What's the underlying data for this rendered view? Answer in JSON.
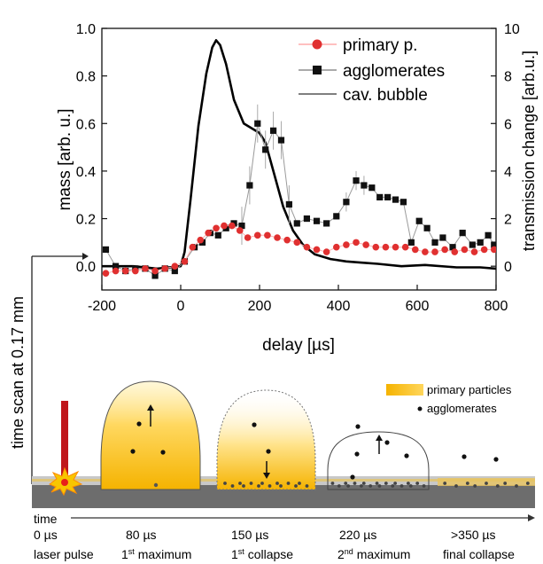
{
  "chart_data": {
    "type": "line",
    "xlabel": "delay [µs]",
    "ylabel_left": "mass [arb. u.]",
    "ylabel_right": "transmission change [arb.u.]",
    "xlim": [
      -200,
      800
    ],
    "ylim_left": [
      -0.1,
      1.0
    ],
    "ylim_right": [
      -1,
      10
    ],
    "x_ticks": [
      "-200",
      "0",
      "200",
      "400",
      "600",
      "800"
    ],
    "y_ticks_left": [
      "0.0",
      "0.2",
      "0.4",
      "0.6",
      "0.8",
      "1.0"
    ],
    "y_ticks_right": [
      "0",
      "2",
      "4",
      "6",
      "8",
      "10"
    ],
    "legend_position": "top-right",
    "series": [
      {
        "name": "primary p.",
        "axis": "left",
        "color": "#e03030",
        "marker": "circle",
        "points": [
          [
            -190,
            -0.03
          ],
          [
            -165,
            -0.02
          ],
          [
            -140,
            -0.02
          ],
          [
            -115,
            -0.02
          ],
          [
            -90,
            -0.01
          ],
          [
            -65,
            -0.02
          ],
          [
            -40,
            -0.01
          ],
          [
            -15,
            0.0
          ],
          [
            10,
            0.02
          ],
          [
            30,
            0.08
          ],
          [
            50,
            0.11
          ],
          [
            70,
            0.14
          ],
          [
            90,
            0.16
          ],
          [
            110,
            0.17
          ],
          [
            130,
            0.17
          ],
          [
            150,
            0.15
          ],
          [
            170,
            0.12
          ],
          [
            195,
            0.13
          ],
          [
            220,
            0.13
          ],
          [
            245,
            0.12
          ],
          [
            270,
            0.11
          ],
          [
            295,
            0.1
          ],
          [
            320,
            0.08
          ],
          [
            345,
            0.07
          ],
          [
            370,
            0.06
          ],
          [
            395,
            0.08
          ],
          [
            420,
            0.09
          ],
          [
            445,
            0.1
          ],
          [
            470,
            0.09
          ],
          [
            495,
            0.08
          ],
          [
            520,
            0.08
          ],
          [
            545,
            0.08
          ],
          [
            570,
            0.08
          ],
          [
            595,
            0.07
          ],
          [
            620,
            0.06
          ],
          [
            645,
            0.06
          ],
          [
            670,
            0.07
          ],
          [
            695,
            0.06
          ],
          [
            720,
            0.07
          ],
          [
            745,
            0.06
          ],
          [
            770,
            0.07
          ],
          [
            795,
            0.07
          ]
        ]
      },
      {
        "name": "agglomerates",
        "axis": "left",
        "color": "#111111",
        "marker": "square",
        "points": [
          [
            -190,
            0.07
          ],
          [
            -165,
            0.0
          ],
          [
            -140,
            -0.02
          ],
          [
            -115,
            -0.01
          ],
          [
            -90,
            -0.01
          ],
          [
            -65,
            -0.04
          ],
          [
            -40,
            -0.01
          ],
          [
            -15,
            -0.02
          ],
          [
            10,
            0.02
          ],
          [
            35,
            0.08
          ],
          [
            55,
            0.1
          ],
          [
            75,
            0.14
          ],
          [
            95,
            0.13
          ],
          [
            115,
            0.16
          ],
          [
            135,
            0.18
          ],
          [
            155,
            0.17
          ],
          [
            175,
            0.34
          ],
          [
            195,
            0.6
          ],
          [
            215,
            0.49
          ],
          [
            235,
            0.57
          ],
          [
            255,
            0.53
          ],
          [
            275,
            0.26
          ],
          [
            295,
            0.18
          ],
          [
            320,
            0.2
          ],
          [
            345,
            0.19
          ],
          [
            370,
            0.18
          ],
          [
            395,
            0.21
          ],
          [
            420,
            0.27
          ],
          [
            445,
            0.36
          ],
          [
            465,
            0.34
          ],
          [
            485,
            0.33
          ],
          [
            505,
            0.29
          ],
          [
            525,
            0.29
          ],
          [
            545,
            0.28
          ],
          [
            565,
            0.27
          ],
          [
            585,
            0.1
          ],
          [
            605,
            0.19
          ],
          [
            625,
            0.16
          ],
          [
            645,
            0.1
          ],
          [
            665,
            0.12
          ],
          [
            690,
            0.08
          ],
          [
            715,
            0.14
          ],
          [
            740,
            0.09
          ],
          [
            760,
            0.1
          ],
          [
            780,
            0.13
          ],
          [
            795,
            0.09
          ]
        ]
      },
      {
        "name": "cav. bubble",
        "axis": "right",
        "color": "#000000",
        "marker": "none",
        "points": [
          [
            -200,
            0.0
          ],
          [
            -120,
            0.0
          ],
          [
            -60,
            -0.1
          ],
          [
            0,
            0.0
          ],
          [
            10,
            0.6
          ],
          [
            25,
            2.8
          ],
          [
            45,
            5.9
          ],
          [
            65,
            8.1
          ],
          [
            80,
            9.2
          ],
          [
            90,
            9.5
          ],
          [
            100,
            9.3
          ],
          [
            115,
            8.5
          ],
          [
            135,
            7.0
          ],
          [
            160,
            6.0
          ],
          [
            180,
            5.8
          ],
          [
            200,
            5.6
          ],
          [
            215,
            5.2
          ],
          [
            235,
            4.0
          ],
          [
            260,
            2.5
          ],
          [
            285,
            1.5
          ],
          [
            310,
            0.9
          ],
          [
            340,
            0.5
          ],
          [
            380,
            0.3
          ],
          [
            420,
            0.2
          ],
          [
            460,
            0.15
          ],
          [
            500,
            0.1
          ],
          [
            560,
            0.0
          ],
          [
            620,
            0.05
          ],
          [
            700,
            -0.05
          ],
          [
            760,
            -0.05
          ],
          [
            800,
            -0.1
          ]
        ]
      }
    ]
  },
  "schematic": {
    "axis_label": "time scan at 0.17 mm",
    "legend": {
      "primary_label": "primary particles",
      "agglomerates_label": "agglomerates"
    },
    "time_label": "time",
    "stages": [
      {
        "time": "0 µs",
        "label": "laser pulse",
        "sup": "",
        "suffix": ""
      },
      {
        "time": "80 µs",
        "label": "1",
        "sup": "st",
        "suffix": " maximum"
      },
      {
        "time": "150 µs",
        "label": "1",
        "sup": "st",
        "suffix": " collapse"
      },
      {
        "time": "220 µs",
        "label": "2",
        "sup": "nd",
        "suffix": " maximum"
      },
      {
        "time": ">350 µs",
        "label": "final collapse",
        "sup": "",
        "suffix": ""
      }
    ],
    "colors": {
      "primary": "#f5b800",
      "laser": "#c0161b",
      "substrate": "#6d6d6d"
    }
  }
}
